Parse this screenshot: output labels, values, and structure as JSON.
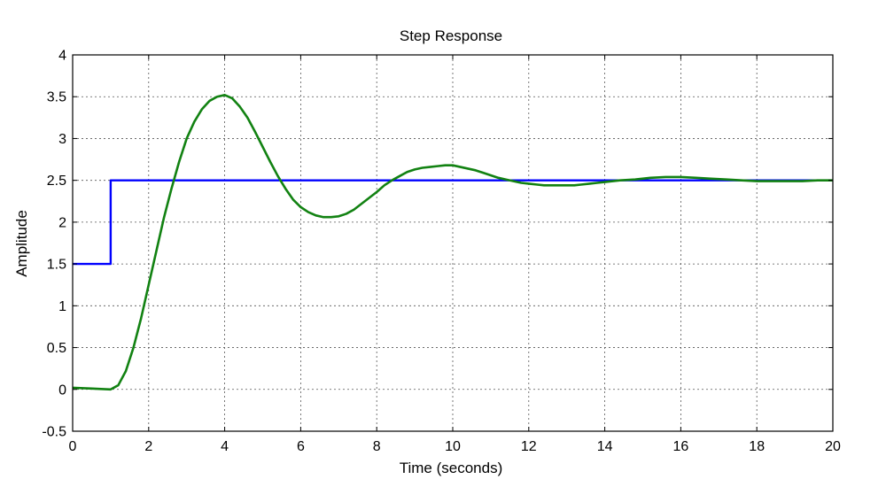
{
  "chart_data": {
    "type": "line",
    "title": "Step Response",
    "xlabel": "Time (seconds)",
    "ylabel": "Amplitude",
    "xlim": [
      0,
      20
    ],
    "ylim": [
      -0.5,
      4
    ],
    "xticks": [
      0,
      2,
      4,
      6,
      8,
      10,
      12,
      14,
      16,
      18,
      20
    ],
    "yticks": [
      -0.5,
      0,
      0.5,
      1,
      1.5,
      2,
      2.5,
      3,
      3.5,
      4
    ],
    "xtick_labels": [
      "0",
      "2",
      "4",
      "6",
      "8",
      "10",
      "12",
      "14",
      "16",
      "18",
      "20"
    ],
    "ytick_labels": [
      "-0.5",
      "0",
      "0.5",
      "1",
      "1.5",
      "2",
      "2.5",
      "3",
      "3.5",
      "4"
    ],
    "grid": true,
    "series": [
      {
        "color": "#0000ff",
        "x": [
          0,
          1,
          1,
          20
        ],
        "y": [
          1.5,
          1.5,
          2.5,
          2.5
        ]
      },
      {
        "color": "#128212",
        "x": [
          0,
          0.5,
          1.0,
          1.2,
          1.4,
          1.6,
          1.8,
          2.0,
          2.2,
          2.4,
          2.6,
          2.8,
          3.0,
          3.2,
          3.4,
          3.6,
          3.8,
          4.0,
          4.2,
          4.4,
          4.6,
          4.8,
          5.0,
          5.2,
          5.4,
          5.6,
          5.8,
          6.0,
          6.2,
          6.4,
          6.6,
          6.8,
          7.0,
          7.2,
          7.4,
          7.6,
          7.8,
          8.0,
          8.2,
          8.4,
          8.6,
          8.8,
          9.0,
          9.2,
          9.4,
          9.6,
          9.8,
          10.0,
          10.2,
          10.4,
          10.6,
          10.8,
          11.0,
          11.2,
          11.4,
          11.6,
          11.8,
          12.0,
          12.2,
          12.4,
          12.6,
          12.8,
          13.0,
          13.2,
          13.4,
          13.6,
          13.8,
          14.0,
          14.4,
          14.8,
          15.2,
          15.6,
          16.0,
          16.4,
          16.8,
          17.2,
          17.6,
          18.0,
          18.4,
          18.8,
          19.2,
          19.6,
          20.0
        ],
        "y": [
          0.02,
          0.01,
          0.0,
          0.05,
          0.22,
          0.5,
          0.85,
          1.25,
          1.65,
          2.05,
          2.4,
          2.72,
          3.0,
          3.2,
          3.35,
          3.45,
          3.5,
          3.52,
          3.48,
          3.38,
          3.25,
          3.08,
          2.9,
          2.72,
          2.55,
          2.4,
          2.27,
          2.18,
          2.12,
          2.08,
          2.06,
          2.06,
          2.07,
          2.1,
          2.15,
          2.22,
          2.29,
          2.36,
          2.44,
          2.5,
          2.55,
          2.6,
          2.63,
          2.65,
          2.66,
          2.67,
          2.68,
          2.68,
          2.66,
          2.64,
          2.62,
          2.59,
          2.56,
          2.53,
          2.51,
          2.49,
          2.47,
          2.46,
          2.45,
          2.44,
          2.44,
          2.44,
          2.44,
          2.44,
          2.45,
          2.46,
          2.47,
          2.48,
          2.5,
          2.51,
          2.53,
          2.54,
          2.54,
          2.53,
          2.52,
          2.51,
          2.5,
          2.49,
          2.49,
          2.49,
          2.49,
          2.5,
          2.5
        ]
      }
    ]
  }
}
